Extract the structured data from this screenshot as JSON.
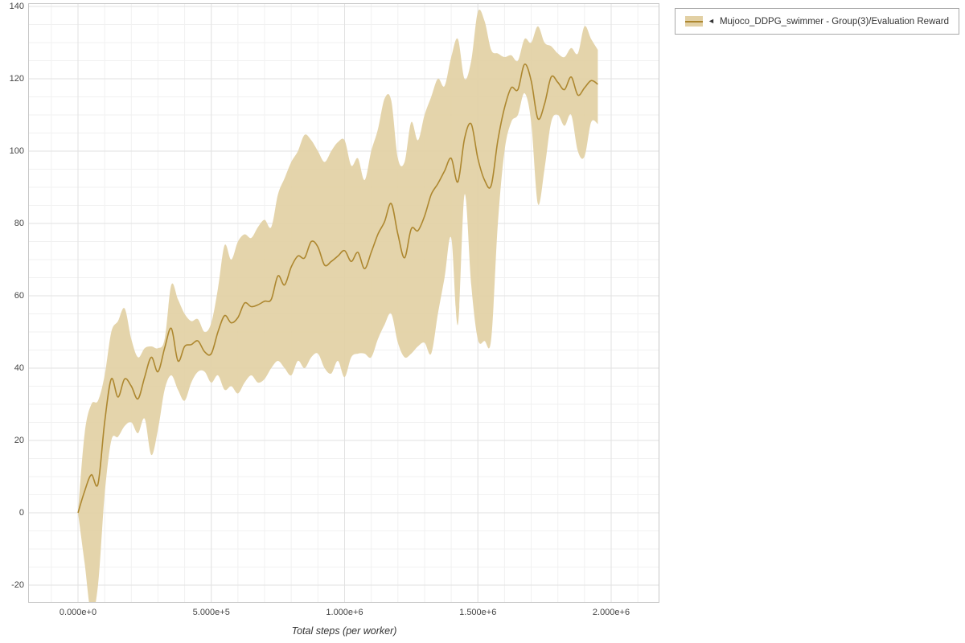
{
  "figure": {
    "xlabel": "Total steps (per worker)",
    "legend": {
      "marker": "◄",
      "label": "Mujoco_DDPG_swimmer - Group(3)/Evaluation Reward"
    },
    "colors": {
      "line": "#ad872f",
      "band": "#e2d0a4",
      "grid_minor": "#f1f1f1",
      "grid_major": "#e2e2e2",
      "border": "#c8c8c8",
      "tick_text": "#444444"
    }
  },
  "chart_data": {
    "type": "line",
    "title": "",
    "xlabel": "Total steps (per worker)",
    "ylabel": "",
    "legend_position": "top-right outside",
    "grid": {
      "minor_x_step": 100000,
      "minor_y_step": 5,
      "major_x_step": 500000,
      "major_y_step": 20
    },
    "xlim": [
      -187000,
      2181000
    ],
    "ylim": [
      -24.9,
      140.9
    ],
    "x_ticks": {
      "values": [
        0,
        500000,
        1000000,
        1500000,
        2000000
      ],
      "labels": [
        "0.000e+0",
        "5.000e+5",
        "1.000e+6",
        "1.500e+6",
        "2.000e+6"
      ]
    },
    "y_ticks": {
      "values": [
        -20,
        0,
        20,
        40,
        60,
        80,
        100,
        120,
        140
      ],
      "labels": [
        "-20",
        "0",
        "20",
        "40",
        "60",
        "80",
        "100",
        "120",
        "140"
      ]
    },
    "series": [
      {
        "name": "Mujoco_DDPG_swimmer - Group(3)/Evaluation Reward",
        "x": [
          0,
          25000,
          50000,
          75000,
          100000,
          125000,
          150000,
          175000,
          200000,
          225000,
          250000,
          275000,
          300000,
          325000,
          350000,
          375000,
          400000,
          425000,
          450000,
          475000,
          500000,
          525000,
          550000,
          575000,
          600000,
          625000,
          650000,
          675000,
          700000,
          725000,
          750000,
          775000,
          800000,
          825000,
          850000,
          875000,
          900000,
          925000,
          950000,
          975000,
          1000000,
          1025000,
          1050000,
          1075000,
          1100000,
          1125000,
          1150000,
          1175000,
          1200000,
          1225000,
          1250000,
          1275000,
          1300000,
          1325000,
          1350000,
          1375000,
          1400000,
          1425000,
          1450000,
          1475000,
          1500000,
          1525000,
          1550000,
          1575000,
          1600000,
          1625000,
          1650000,
          1675000,
          1700000,
          1725000,
          1750000,
          1775000,
          1800000,
          1825000,
          1850000,
          1875000,
          1900000,
          1925000,
          1950000
        ],
        "mean": [
          0,
          6,
          10.5,
          8,
          25,
          37,
          32,
          37,
          35,
          31.5,
          37.5,
          43,
          39,
          45.5,
          51,
          42,
          46,
          46.5,
          47.5,
          44.5,
          44,
          50,
          54.5,
          52.5,
          54,
          58,
          57,
          57.5,
          58.5,
          59,
          65.5,
          63,
          68,
          71,
          70.5,
          75,
          73.5,
          68.5,
          69.5,
          71,
          72.5,
          69.5,
          72,
          67.5,
          72,
          77,
          80.5,
          85.5,
          77,
          70.5,
          78.5,
          78,
          82,
          88,
          91,
          94.5,
          98,
          91.5,
          103.5,
          107.5,
          98,
          92,
          90.5,
          103,
          112,
          117.5,
          117,
          124,
          119.5,
          109,
          113,
          120.5,
          119,
          117,
          120.5,
          115.5,
          117.5,
          119.5,
          118.5
        ],
        "lower": [
          0,
          -14,
          -28,
          -20,
          5,
          20,
          21,
          24,
          25,
          22,
          26,
          16,
          23,
          34,
          38,
          34,
          31,
          36,
          39,
          39,
          36,
          38,
          34,
          35,
          33,
          36,
          38,
          36,
          37,
          40,
          42,
          40,
          38,
          42,
          40,
          43,
          44,
          40,
          38.5,
          42,
          37.5,
          43,
          44,
          44,
          43,
          48,
          52,
          55,
          47,
          43,
          44,
          46,
          47,
          44,
          55,
          65,
          76,
          52,
          88,
          63,
          48,
          47.5,
          48,
          80,
          100,
          108,
          110,
          116,
          108,
          85.5,
          95,
          108,
          110,
          107,
          110,
          100,
          98.5,
          108,
          107.5
        ],
        "upper": [
          0,
          22,
          30,
          31,
          38,
          50,
          53,
          56.5,
          48,
          43,
          45.5,
          46,
          45.5,
          48,
          63,
          59,
          55,
          53,
          53.5,
          50,
          52.5,
          62,
          74,
          70,
          75,
          77,
          76,
          79,
          81,
          79,
          88,
          92.5,
          97,
          100,
          104.5,
          103,
          100,
          97,
          100,
          102.5,
          103,
          96,
          98,
          92,
          100,
          106,
          114.5,
          114,
          98,
          97,
          108,
          103,
          110,
          115,
          120,
          118,
          126,
          131,
          120,
          125,
          138.5,
          136,
          128,
          127,
          126,
          126.5,
          125,
          131,
          130,
          134.5,
          130,
          129,
          127,
          126,
          128.5,
          127,
          134.5,
          131,
          128
        ]
      }
    ]
  }
}
